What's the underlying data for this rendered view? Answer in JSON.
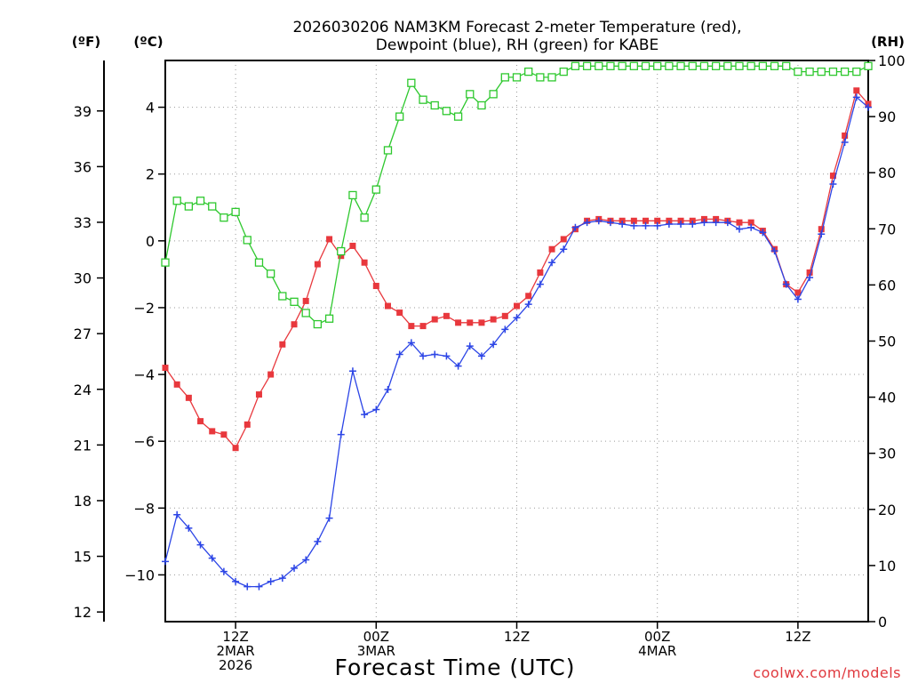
{
  "chart_data": {
    "type": "line",
    "title_line1": "2026030206 NAM3KM Forecast 2-meter Temperature (red),",
    "title_line2": "Dewpoint (blue), RH (green) for KABE",
    "xlabel": "Forecast Time (UTC)",
    "credit": "coolwx.com/models",
    "units": {
      "fahrenheit": "(ºF)",
      "celsius": "(ºC)",
      "rh": "(RH)"
    },
    "x_range_hours": [
      6,
      66
    ],
    "c_range": [
      -11.4,
      5.4
    ],
    "rh_range": [
      0,
      100
    ],
    "c_ticks": [
      "-10",
      "-8",
      "-6",
      "-4",
      "-2",
      "0",
      "2",
      "4"
    ],
    "f_ticks": [
      "12",
      "15",
      "18",
      "21",
      "24",
      "27",
      "30",
      "33",
      "36",
      "39"
    ],
    "rh_ticks": [
      "0",
      "10",
      "20",
      "30",
      "40",
      "50",
      "60",
      "70",
      "80",
      "90",
      "100"
    ],
    "x_ticks": [
      {
        "hour": 12,
        "lines": [
          "12Z",
          "2MAR",
          "2026"
        ]
      },
      {
        "hour": 24,
        "lines": [
          "00Z",
          "3MAR"
        ]
      },
      {
        "hour": 36,
        "lines": [
          "12Z"
        ]
      },
      {
        "hour": 48,
        "lines": [
          "00Z",
          "4MAR"
        ]
      },
      {
        "hour": 60,
        "lines": [
          "12Z"
        ]
      }
    ],
    "series": [
      {
        "name": "2-meter Temperature",
        "unit": "C",
        "color": "#e8383d",
        "marker": "filled-square",
        "x": [
          6,
          7,
          8,
          9,
          10,
          11,
          12,
          13,
          14,
          15,
          16,
          17,
          18,
          19,
          20,
          21,
          22,
          23,
          24,
          25,
          26,
          27,
          28,
          29,
          30,
          31,
          32,
          33,
          34,
          35,
          36,
          37,
          38,
          39,
          40,
          41,
          42,
          43,
          44,
          45,
          46,
          47,
          48,
          49,
          50,
          51,
          52,
          53,
          54,
          55,
          56,
          57,
          58,
          59,
          60,
          61,
          62,
          63,
          64,
          65,
          66
        ],
        "values": [
          -3.8,
          -4.3,
          -4.7,
          -5.4,
          -5.7,
          -5.8,
          -6.2,
          -5.5,
          -4.6,
          -4.0,
          -3.1,
          -2.5,
          -1.8,
          -0.7,
          0.05,
          -0.45,
          -0.15,
          -0.65,
          -1.35,
          -1.95,
          -2.15,
          -2.55,
          -2.55,
          -2.35,
          -2.25,
          -2.45,
          -2.45,
          -2.45,
          -2.35,
          -2.25,
          -1.95,
          -1.65,
          -0.95,
          -0.25,
          0.05,
          0.35,
          0.6,
          0.65,
          0.6,
          0.6,
          0.6,
          0.6,
          0.6,
          0.6,
          0.6,
          0.6,
          0.65,
          0.65,
          0.6,
          0.55,
          0.55,
          0.3,
          -0.25,
          -1.3,
          -1.55,
          -0.95,
          0.35,
          1.95,
          3.15,
          4.5,
          4.1
        ]
      },
      {
        "name": "Dewpoint",
        "unit": "C",
        "color": "#2c45e6",
        "marker": "plus",
        "x": [
          6,
          7,
          8,
          9,
          10,
          11,
          12,
          13,
          14,
          15,
          16,
          17,
          18,
          19,
          20,
          21,
          22,
          23,
          24,
          25,
          26,
          27,
          28,
          29,
          30,
          31,
          32,
          33,
          34,
          35,
          36,
          37,
          38,
          39,
          40,
          41,
          42,
          43,
          44,
          45,
          46,
          47,
          48,
          49,
          50,
          51,
          52,
          53,
          54,
          55,
          56,
          57,
          58,
          59,
          60,
          61,
          62,
          63,
          64,
          65,
          66
        ],
        "values": [
          -9.6,
          -8.2,
          -8.6,
          -9.1,
          -9.5,
          -9.9,
          -10.2,
          -10.35,
          -10.35,
          -10.2,
          -10.1,
          -9.8,
          -9.55,
          -9.0,
          -8.3,
          -5.8,
          -3.9,
          -5.2,
          -5.05,
          -4.45,
          -3.4,
          -3.05,
          -3.45,
          -3.4,
          -3.45,
          -3.75,
          -3.15,
          -3.45,
          -3.1,
          -2.65,
          -2.3,
          -1.9,
          -1.3,
          -0.65,
          -0.25,
          0.4,
          0.55,
          0.6,
          0.55,
          0.5,
          0.45,
          0.45,
          0.45,
          0.5,
          0.5,
          0.5,
          0.55,
          0.55,
          0.55,
          0.35,
          0.4,
          0.25,
          -0.3,
          -1.3,
          -1.75,
          -1.1,
          0.2,
          1.7,
          2.95,
          4.3,
          4.0
        ]
      },
      {
        "name": "RH",
        "unit": "%",
        "color": "#2ec82e",
        "marker": "open-square",
        "x": [
          6,
          7,
          8,
          9,
          10,
          11,
          12,
          13,
          14,
          15,
          16,
          17,
          18,
          19,
          20,
          21,
          22,
          23,
          24,
          25,
          26,
          27,
          28,
          29,
          30,
          31,
          32,
          33,
          34,
          35,
          36,
          37,
          38,
          39,
          40,
          41,
          42,
          43,
          44,
          45,
          46,
          47,
          48,
          49,
          50,
          51,
          52,
          53,
          54,
          55,
          56,
          57,
          58,
          59,
          60,
          61,
          62,
          63,
          64,
          65,
          66
        ],
        "values": [
          64,
          75,
          74,
          75,
          74,
          72,
          73,
          68,
          64,
          62,
          58,
          57,
          55,
          53,
          54,
          66,
          76,
          72,
          77,
          84,
          90,
          96,
          93,
          92,
          91,
          90,
          94,
          92,
          94,
          97,
          97,
          98,
          97,
          97,
          98,
          99,
          99,
          99,
          99,
          99,
          99,
          99,
          99,
          99,
          99,
          99,
          99,
          99,
          99,
          99,
          99,
          99,
          99,
          99,
          98,
          98,
          98,
          98,
          98,
          98,
          99
        ]
      }
    ]
  }
}
